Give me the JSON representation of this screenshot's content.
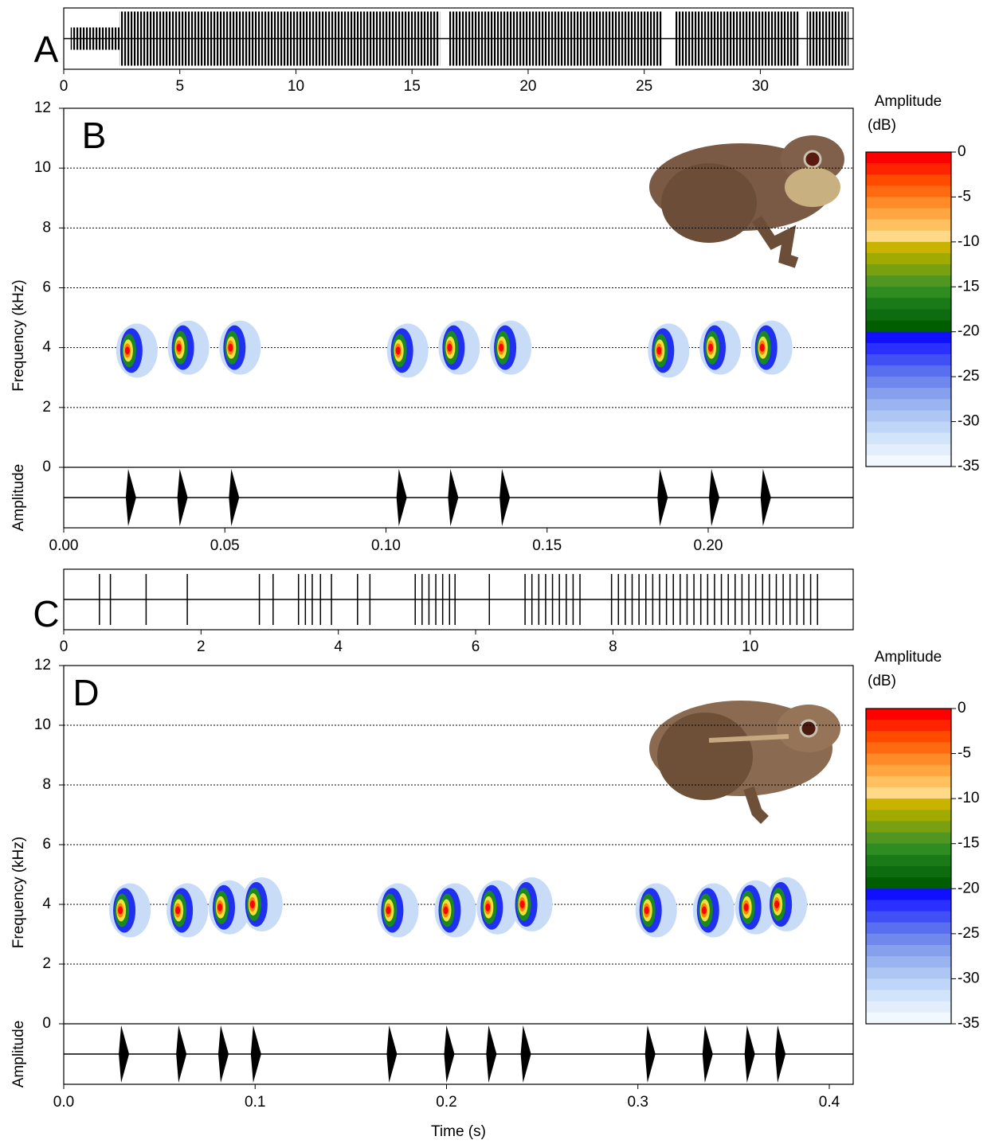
{
  "chart_data": [
    {
      "type": "waveform",
      "label": "A",
      "xlim": [
        0,
        34
      ],
      "xticks": [
        0,
        5,
        10,
        15,
        20,
        25,
        30
      ],
      "segments": [
        [
          0.3,
          2.4
        ],
        [
          2.4,
          16.2
        ],
        [
          16.6,
          25.8
        ],
        [
          26.3,
          31.7
        ],
        [
          32.0,
          33.8
        ]
      ]
    },
    {
      "type": "spectrogram",
      "label": "B",
      "ylabel": "Frequency (kHz)",
      "osc_label": "Amplitude",
      "xlim": [
        0,
        0.245
      ],
      "xticks": [
        {
          "value": 0,
          "label": "0.00"
        },
        0.05,
        {
          "value": 0.1,
          "label": "0.10"
        },
        0.15,
        {
          "value": 0.2,
          "label": "0.20"
        }
      ],
      "ylim": [
        0,
        12
      ],
      "yticks": [
        0,
        2,
        4,
        6,
        8,
        10,
        12
      ],
      "grid": true,
      "notes": {
        "x": [
          0.02,
          0.036,
          0.052,
          0.104,
          0.12,
          0.136,
          0.185,
          0.201,
          0.217
        ],
        "y": [
          3.9,
          4.0,
          4.0,
          3.9,
          4.0,
          4.0,
          3.9,
          4.0,
          4.0
        ]
      },
      "colorbar": {
        "title": [
          "Amplitude",
          "(dB)"
        ],
        "lim": [
          0,
          -35
        ],
        "ticks": [
          0,
          -5,
          -10,
          -15,
          -20,
          -25,
          -30,
          -35
        ],
        "colors": [
          "#ff0000",
          "#ff2400",
          "#ff4a00",
          "#ff6a10",
          "#ff8a28",
          "#ffa640",
          "#ffc060",
          "#ffd888",
          "#c8b400",
          "#a0aa00",
          "#78a010",
          "#509620",
          "#2e8c20",
          "#1a7a18",
          "#0e6c10",
          "#005e00",
          "#1010ff",
          "#2a30ff",
          "#4050f5",
          "#5a6ef0",
          "#7088ec",
          "#86a0ee",
          "#9ab4f0",
          "#aec6f4",
          "#c0d6f8",
          "#d2e4fa",
          "#e2eefc",
          "#f2f8ff"
        ]
      }
    },
    {
      "type": "waveform",
      "label": "C",
      "xlim": [
        0,
        11.5
      ],
      "xticks": [
        0,
        2,
        4,
        6,
        8,
        10
      ],
      "pulses": [
        0.52,
        0.68,
        1.2,
        1.8,
        2.85,
        3.05,
        3.42,
        3.52,
        3.62,
        3.74,
        3.9,
        4.28,
        4.46,
        5.12,
        5.22,
        5.32,
        5.42,
        5.52,
        5.62,
        5.7,
        6.2,
        6.72,
        6.82,
        6.92,
        7.02,
        7.12,
        7.22,
        7.32,
        7.42,
        7.52,
        7.98,
        8.08,
        8.18,
        8.28,
        8.38,
        8.48,
        8.58,
        8.68,
        8.78,
        8.88,
        8.98,
        9.08,
        9.18,
        9.28,
        9.38,
        9.48,
        9.58,
        9.68,
        9.78,
        9.88,
        9.98,
        10.08,
        10.18,
        10.28,
        10.38,
        10.48,
        10.58,
        10.68,
        10.78,
        10.88,
        10.98
      ]
    },
    {
      "type": "spectrogram",
      "label": "D",
      "ylabel": "Frequency (kHz)",
      "osc_label": "Amplitude",
      "xlabel": "Time (s)",
      "xlim": [
        0,
        0.4125
      ],
      "xticks": [
        {
          "value": 0,
          "label": "0.0"
        },
        0.1,
        0.2,
        0.3,
        0.4
      ],
      "ylim": [
        0,
        12
      ],
      "yticks": [
        0,
        2,
        4,
        6,
        8,
        10,
        12
      ],
      "grid": true,
      "notes": {
        "x": [
          0.03,
          0.06,
          0.082,
          0.099,
          0.17,
          0.2,
          0.222,
          0.24,
          0.305,
          0.335,
          0.357,
          0.373
        ],
        "y": [
          3.8,
          3.8,
          3.9,
          4.0,
          3.8,
          3.8,
          3.9,
          4.0,
          3.8,
          3.8,
          3.9,
          4.0
        ]
      },
      "colorbar": {
        "title": [
          "Amplitude",
          "(dB)"
        ],
        "lim": [
          0,
          -35
        ],
        "ticks": [
          0,
          -5,
          -10,
          -15,
          -20,
          -25,
          -30,
          -35
        ],
        "colors": [
          "#ff0000",
          "#ff2400",
          "#ff4a00",
          "#ff6a10",
          "#ff8a28",
          "#ffa640",
          "#ffc060",
          "#ffd888",
          "#c8b400",
          "#a0aa00",
          "#78a010",
          "#509620",
          "#2e8c20",
          "#1a7a18",
          "#0e6c10",
          "#005e00",
          "#1010ff",
          "#2a30ff",
          "#4050f5",
          "#5a6ef0",
          "#7088ec",
          "#86a0ee",
          "#9ab4f0",
          "#aec6f4",
          "#c0d6f8",
          "#d2e4fa",
          "#e2eefc",
          "#f2f8ff"
        ]
      }
    }
  ]
}
